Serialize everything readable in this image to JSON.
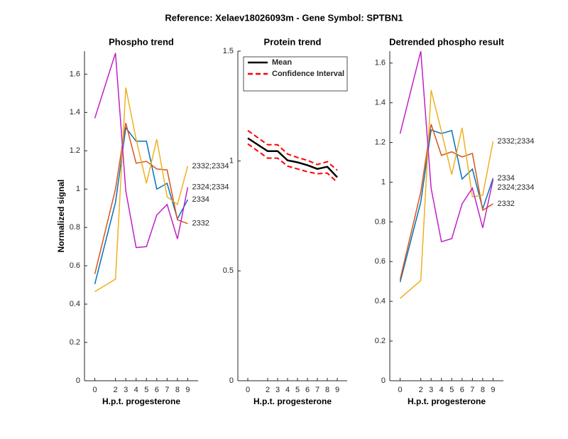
{
  "title": "Reference:  Xelaev18026093m - Gene Symbol:  SPTBN1",
  "chart_data": [
    {
      "type": "line",
      "title": "Phospho trend",
      "xlabel": "H.p.t. progesterone",
      "ylabel": "Normalized signal",
      "x": [
        0,
        2,
        3,
        4,
        5,
        6,
        7,
        8,
        9
      ],
      "xlim": [
        -1,
        10
      ],
      "xticks": [
        0,
        2,
        3,
        4,
        5,
        6,
        7,
        8,
        9
      ],
      "ylim": [
        0,
        1.72
      ],
      "yticks": [
        0,
        0.2,
        0.4,
        0.6,
        0.8,
        1,
        1.2,
        1.4,
        1.6
      ],
      "legend": "line-end",
      "series": [
        {
          "name": "2334",
          "color": "#0072bd",
          "values": [
            0.505,
            0.93,
            1.32,
            1.25,
            1.25,
            1.0,
            1.03,
            0.845,
            0.945
          ]
        },
        {
          "name": "2332",
          "color": "#d95319",
          "values": [
            0.557,
            1.0,
            1.345,
            1.135,
            1.145,
            1.105,
            1.1,
            0.84,
            0.82
          ]
        },
        {
          "name": "2332;2334",
          "color": "#edb120",
          "values": [
            0.465,
            0.53,
            1.53,
            1.26,
            1.03,
            1.26,
            0.96,
            0.92,
            1.12
          ]
        },
        {
          "name": "2324;2334",
          "color": "#c020c8",
          "values": [
            1.37,
            1.71,
            0.99,
            0.695,
            0.7,
            0.865,
            0.92,
            0.74,
            1.01
          ]
        }
      ]
    },
    {
      "type": "band",
      "title": "Protein trend",
      "xlabel": "H.p.t. progesterone",
      "x": [
        0,
        2,
        3,
        4,
        5,
        6,
        7,
        8,
        9
      ],
      "xlim": [
        -1,
        10
      ],
      "xticks": [
        0,
        2,
        3,
        4,
        5,
        6,
        7,
        8,
        9
      ],
      "ylim": [
        0,
        1.5
      ],
      "yticks": [
        0,
        0.5,
        1,
        1.5
      ],
      "legend": "northwest",
      "series": [
        {
          "name": "Mean",
          "color": "#000000",
          "values": [
            1.104,
            1.045,
            1.045,
            1.003,
            0.994,
            0.981,
            0.964,
            0.974,
            0.926
          ]
        },
        {
          "name": "Confidence Interval",
          "color": "#ff0000",
          "upper": [
            1.139,
            1.074,
            1.074,
            1.032,
            1.016,
            1.003,
            0.984,
            0.997,
            0.958
          ],
          "lower": [
            1.078,
            1.013,
            1.013,
            0.977,
            0.964,
            0.951,
            0.942,
            0.945,
            0.903
          ]
        }
      ]
    },
    {
      "type": "line",
      "title": "Detrended phospho result",
      "xlabel": "H.p.t. progesterone",
      "x": [
        0,
        2,
        3,
        4,
        5,
        6,
        7,
        8,
        9
      ],
      "xlim": [
        -1,
        10
      ],
      "xticks": [
        0,
        2,
        3,
        4,
        5,
        6,
        7,
        8,
        9
      ],
      "ylim": [
        0,
        1.66
      ],
      "yticks": [
        0,
        0.2,
        0.4,
        0.6,
        0.8,
        1,
        1.2,
        1.4,
        1.6
      ],
      "legend": "line-end",
      "series": [
        {
          "name": "2334",
          "color": "#0072bd",
          "values": [
            0.497,
            0.9,
            1.263,
            1.245,
            1.26,
            1.016,
            1.066,
            0.866,
            1.02
          ]
        },
        {
          "name": "2332",
          "color": "#d95319",
          "values": [
            0.51,
            0.95,
            1.292,
            1.135,
            1.153,
            1.127,
            1.145,
            0.859,
            0.891
          ]
        },
        {
          "name": "2332;2334",
          "color": "#edb120",
          "values": [
            0.415,
            0.505,
            1.464,
            1.256,
            1.038,
            1.274,
            0.927,
            0.934,
            1.206
          ]
        },
        {
          "name": "2324;2334",
          "color": "#c020c8",
          "values": [
            1.245,
            1.66,
            0.97,
            0.7,
            0.716,
            0.891,
            0.97,
            0.77,
            1.013
          ]
        }
      ]
    }
  ]
}
